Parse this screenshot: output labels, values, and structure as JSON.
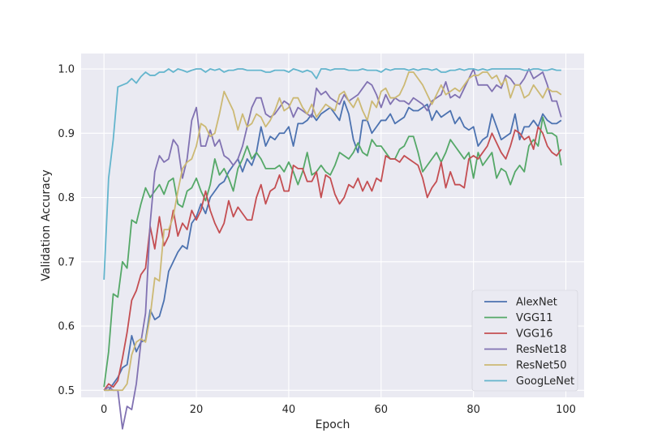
{
  "chart_data": {
    "type": "line",
    "title": "",
    "xlabel": "Epoch",
    "ylabel": "Validation Accuracy",
    "xlim": [
      -4.95,
      103.95
    ],
    "ylim": [
      0.489,
      1.024
    ],
    "xticks": [
      0,
      20,
      40,
      60,
      80,
      100
    ],
    "yticks": [
      0.5,
      0.6,
      0.7,
      0.8,
      0.9,
      1.0
    ],
    "xtick_labels": [
      "0",
      "20",
      "40",
      "60",
      "80",
      "100"
    ],
    "ytick_labels": [
      "0.5",
      "0.6",
      "0.7",
      "0.8",
      "0.9",
      "1.0"
    ],
    "grid": true,
    "legend_position": "lower-right",
    "x": [
      0,
      1,
      2,
      3,
      4,
      5,
      6,
      7,
      8,
      9,
      10,
      11,
      12,
      13,
      14,
      15,
      16,
      17,
      18,
      19,
      20,
      21,
      22,
      23,
      24,
      25,
      26,
      27,
      28,
      29,
      30,
      31,
      32,
      33,
      34,
      35,
      36,
      37,
      38,
      39,
      40,
      41,
      42,
      43,
      44,
      45,
      46,
      47,
      48,
      49,
      50,
      51,
      52,
      53,
      54,
      55,
      56,
      57,
      58,
      59,
      60,
      61,
      62,
      63,
      64,
      65,
      66,
      67,
      68,
      69,
      70,
      71,
      72,
      73,
      74,
      75,
      76,
      77,
      78,
      79,
      80,
      81,
      82,
      83,
      84,
      85,
      86,
      87,
      88,
      89,
      90,
      91,
      92,
      93,
      94,
      95,
      96,
      97,
      98,
      99
    ],
    "series": [
      {
        "name": "AlexNet",
        "color": "#4c72b0",
        "values": [
          0.5,
          0.5,
          0.51,
          0.52,
          0.535,
          0.54,
          0.585,
          0.56,
          0.575,
          0.578,
          0.625,
          0.61,
          0.615,
          0.64,
          0.685,
          0.7,
          0.715,
          0.725,
          0.72,
          0.76,
          0.77,
          0.79,
          0.775,
          0.8,
          0.81,
          0.82,
          0.825,
          0.84,
          0.85,
          0.86,
          0.84,
          0.86,
          0.85,
          0.87,
          0.91,
          0.88,
          0.895,
          0.89,
          0.9,
          0.9,
          0.91,
          0.88,
          0.915,
          0.915,
          0.92,
          0.93,
          0.92,
          0.93,
          0.935,
          0.94,
          0.93,
          0.92,
          0.95,
          0.93,
          0.89,
          0.87,
          0.92,
          0.92,
          0.9,
          0.91,
          0.92,
          0.92,
          0.93,
          0.915,
          0.92,
          0.925,
          0.94,
          0.935,
          0.935,
          0.94,
          0.945,
          0.92,
          0.935,
          0.925,
          0.93,
          0.935,
          0.915,
          0.925,
          0.91,
          0.905,
          0.91,
          0.88,
          0.89,
          0.895,
          0.93,
          0.91,
          0.89,
          0.895,
          0.9,
          0.93,
          0.89,
          0.91,
          0.91,
          0.92,
          0.91,
          0.93,
          0.92,
          0.915,
          0.915,
          0.92
        ]
      },
      {
        "name": "VGG11",
        "color": "#55a868",
        "values": [
          0.505,
          0.56,
          0.65,
          0.645,
          0.7,
          0.69,
          0.765,
          0.76,
          0.79,
          0.815,
          0.8,
          0.81,
          0.82,
          0.805,
          0.825,
          0.83,
          0.79,
          0.785,
          0.81,
          0.815,
          0.83,
          0.81,
          0.795,
          0.82,
          0.86,
          0.835,
          0.845,
          0.83,
          0.81,
          0.845,
          0.86,
          0.88,
          0.86,
          0.87,
          0.86,
          0.845,
          0.845,
          0.845,
          0.85,
          0.84,
          0.855,
          0.84,
          0.82,
          0.84,
          0.87,
          0.835,
          0.84,
          0.85,
          0.84,
          0.835,
          0.85,
          0.87,
          0.865,
          0.86,
          0.87,
          0.885,
          0.87,
          0.865,
          0.89,
          0.88,
          0.88,
          0.87,
          0.86,
          0.86,
          0.875,
          0.88,
          0.895,
          0.895,
          0.87,
          0.84,
          0.85,
          0.86,
          0.87,
          0.855,
          0.87,
          0.89,
          0.88,
          0.87,
          0.86,
          0.87,
          0.83,
          0.87,
          0.85,
          0.86,
          0.87,
          0.83,
          0.845,
          0.84,
          0.82,
          0.84,
          0.85,
          0.84,
          0.88,
          0.89,
          0.88,
          0.925,
          0.9,
          0.9,
          0.895,
          0.85
        ]
      },
      {
        "name": "VGG16",
        "color": "#c44e52",
        "values": [
          0.5,
          0.51,
          0.505,
          0.515,
          0.55,
          0.59,
          0.64,
          0.655,
          0.68,
          0.69,
          0.755,
          0.72,
          0.77,
          0.725,
          0.74,
          0.78,
          0.74,
          0.76,
          0.75,
          0.78,
          0.765,
          0.78,
          0.81,
          0.78,
          0.76,
          0.745,
          0.76,
          0.795,
          0.77,
          0.785,
          0.775,
          0.765,
          0.765,
          0.8,
          0.82,
          0.79,
          0.81,
          0.815,
          0.835,
          0.81,
          0.81,
          0.85,
          0.845,
          0.845,
          0.825,
          0.825,
          0.84,
          0.8,
          0.835,
          0.83,
          0.805,
          0.79,
          0.8,
          0.82,
          0.815,
          0.83,
          0.81,
          0.825,
          0.81,
          0.83,
          0.825,
          0.865,
          0.86,
          0.86,
          0.855,
          0.865,
          0.86,
          0.855,
          0.85,
          0.83,
          0.8,
          0.815,
          0.825,
          0.855,
          0.815,
          0.84,
          0.82,
          0.82,
          0.815,
          0.86,
          0.865,
          0.86,
          0.87,
          0.88,
          0.9,
          0.885,
          0.87,
          0.86,
          0.88,
          0.905,
          0.9,
          0.89,
          0.895,
          0.875,
          0.91,
          0.9,
          0.88,
          0.87,
          0.865,
          0.875
        ]
      },
      {
        "name": "ResNet18",
        "color": "#8172b2",
        "values": [
          0.5,
          0.505,
          0.5,
          0.5,
          0.44,
          0.475,
          0.47,
          0.51,
          0.575,
          0.62,
          0.76,
          0.84,
          0.865,
          0.855,
          0.86,
          0.89,
          0.88,
          0.83,
          0.86,
          0.92,
          0.94,
          0.88,
          0.88,
          0.905,
          0.88,
          0.89,
          0.865,
          0.86,
          0.85,
          0.86,
          0.88,
          0.91,
          0.94,
          0.955,
          0.955,
          0.93,
          0.925,
          0.93,
          0.94,
          0.95,
          0.945,
          0.925,
          0.94,
          0.935,
          0.93,
          0.925,
          0.97,
          0.96,
          0.965,
          0.955,
          0.95,
          0.945,
          0.96,
          0.95,
          0.955,
          0.96,
          0.97,
          0.98,
          0.975,
          0.96,
          0.94,
          0.96,
          0.945,
          0.955,
          0.95,
          0.95,
          0.945,
          0.955,
          0.95,
          0.945,
          0.935,
          0.95,
          0.955,
          0.96,
          0.98,
          0.955,
          0.96,
          0.955,
          0.97,
          0.985,
          1.0,
          0.975,
          0.975,
          0.975,
          0.965,
          0.975,
          0.97,
          0.99,
          0.985,
          0.975,
          0.975,
          0.985,
          1.0,
          0.985,
          0.99,
          0.995,
          0.975,
          0.95,
          0.95,
          0.925
        ]
      },
      {
        "name": "ResNet50",
        "color": "#ccb974",
        "values": [
          0.5,
          0.5,
          0.5,
          0.5,
          0.5,
          0.51,
          0.555,
          0.575,
          0.58,
          0.575,
          0.615,
          0.675,
          0.67,
          0.75,
          0.75,
          0.77,
          0.81,
          0.845,
          0.855,
          0.86,
          0.88,
          0.915,
          0.91,
          0.895,
          0.9,
          0.93,
          0.965,
          0.95,
          0.935,
          0.905,
          0.93,
          0.91,
          0.915,
          0.93,
          0.925,
          0.91,
          0.92,
          0.935,
          0.955,
          0.935,
          0.94,
          0.955,
          0.955,
          0.94,
          0.93,
          0.945,
          0.925,
          0.935,
          0.945,
          0.94,
          0.935,
          0.96,
          0.965,
          0.95,
          0.94,
          0.955,
          0.935,
          0.92,
          0.95,
          0.94,
          0.965,
          0.97,
          0.955,
          0.955,
          0.96,
          0.975,
          0.995,
          0.995,
          0.985,
          0.975,
          0.96,
          0.945,
          0.96,
          0.975,
          0.96,
          0.965,
          0.97,
          0.965,
          0.975,
          0.985,
          0.99,
          0.99,
          0.995,
          0.995,
          0.985,
          0.99,
          0.975,
          0.985,
          0.955,
          0.975,
          0.975,
          0.955,
          0.96,
          0.975,
          0.965,
          0.955,
          0.97,
          0.965,
          0.965,
          0.96
        ]
      },
      {
        "name": "GoogLeNet",
        "color": "#64b5cd",
        "values": [
          0.672,
          0.83,
          0.89,
          0.972,
          0.975,
          0.978,
          0.985,
          0.978,
          0.988,
          0.995,
          0.99,
          0.99,
          0.995,
          0.995,
          1.0,
          0.995,
          1.0,
          0.998,
          0.995,
          0.998,
          1.0,
          1.0,
          0.995,
          1.0,
          0.998,
          1.0,
          0.995,
          0.998,
          0.998,
          1.0,
          1.0,
          0.998,
          0.998,
          0.998,
          0.998,
          0.995,
          0.995,
          0.998,
          0.998,
          0.998,
          0.995,
          1.0,
          0.998,
          0.995,
          0.998,
          0.995,
          0.985,
          1.0,
          1.0,
          0.998,
          1.0,
          1.0,
          1.0,
          0.998,
          0.998,
          0.998,
          1.0,
          0.998,
          0.998,
          0.998,
          0.995,
          1.0,
          0.998,
          1.0,
          1.0,
          1.0,
          0.998,
          1.0,
          0.998,
          1.0,
          1.0,
          0.998,
          1.0,
          0.995,
          0.995,
          0.998,
          0.998,
          1.0,
          0.998,
          1.0,
          1.0,
          0.998,
          1.0,
          0.998,
          1.0,
          1.0,
          1.0,
          1.0,
          1.0,
          1.0,
          1.0,
          0.998,
          0.998,
          1.0,
          1.0,
          0.998,
          0.998,
          1.0,
          0.998,
          0.998
        ]
      }
    ]
  }
}
